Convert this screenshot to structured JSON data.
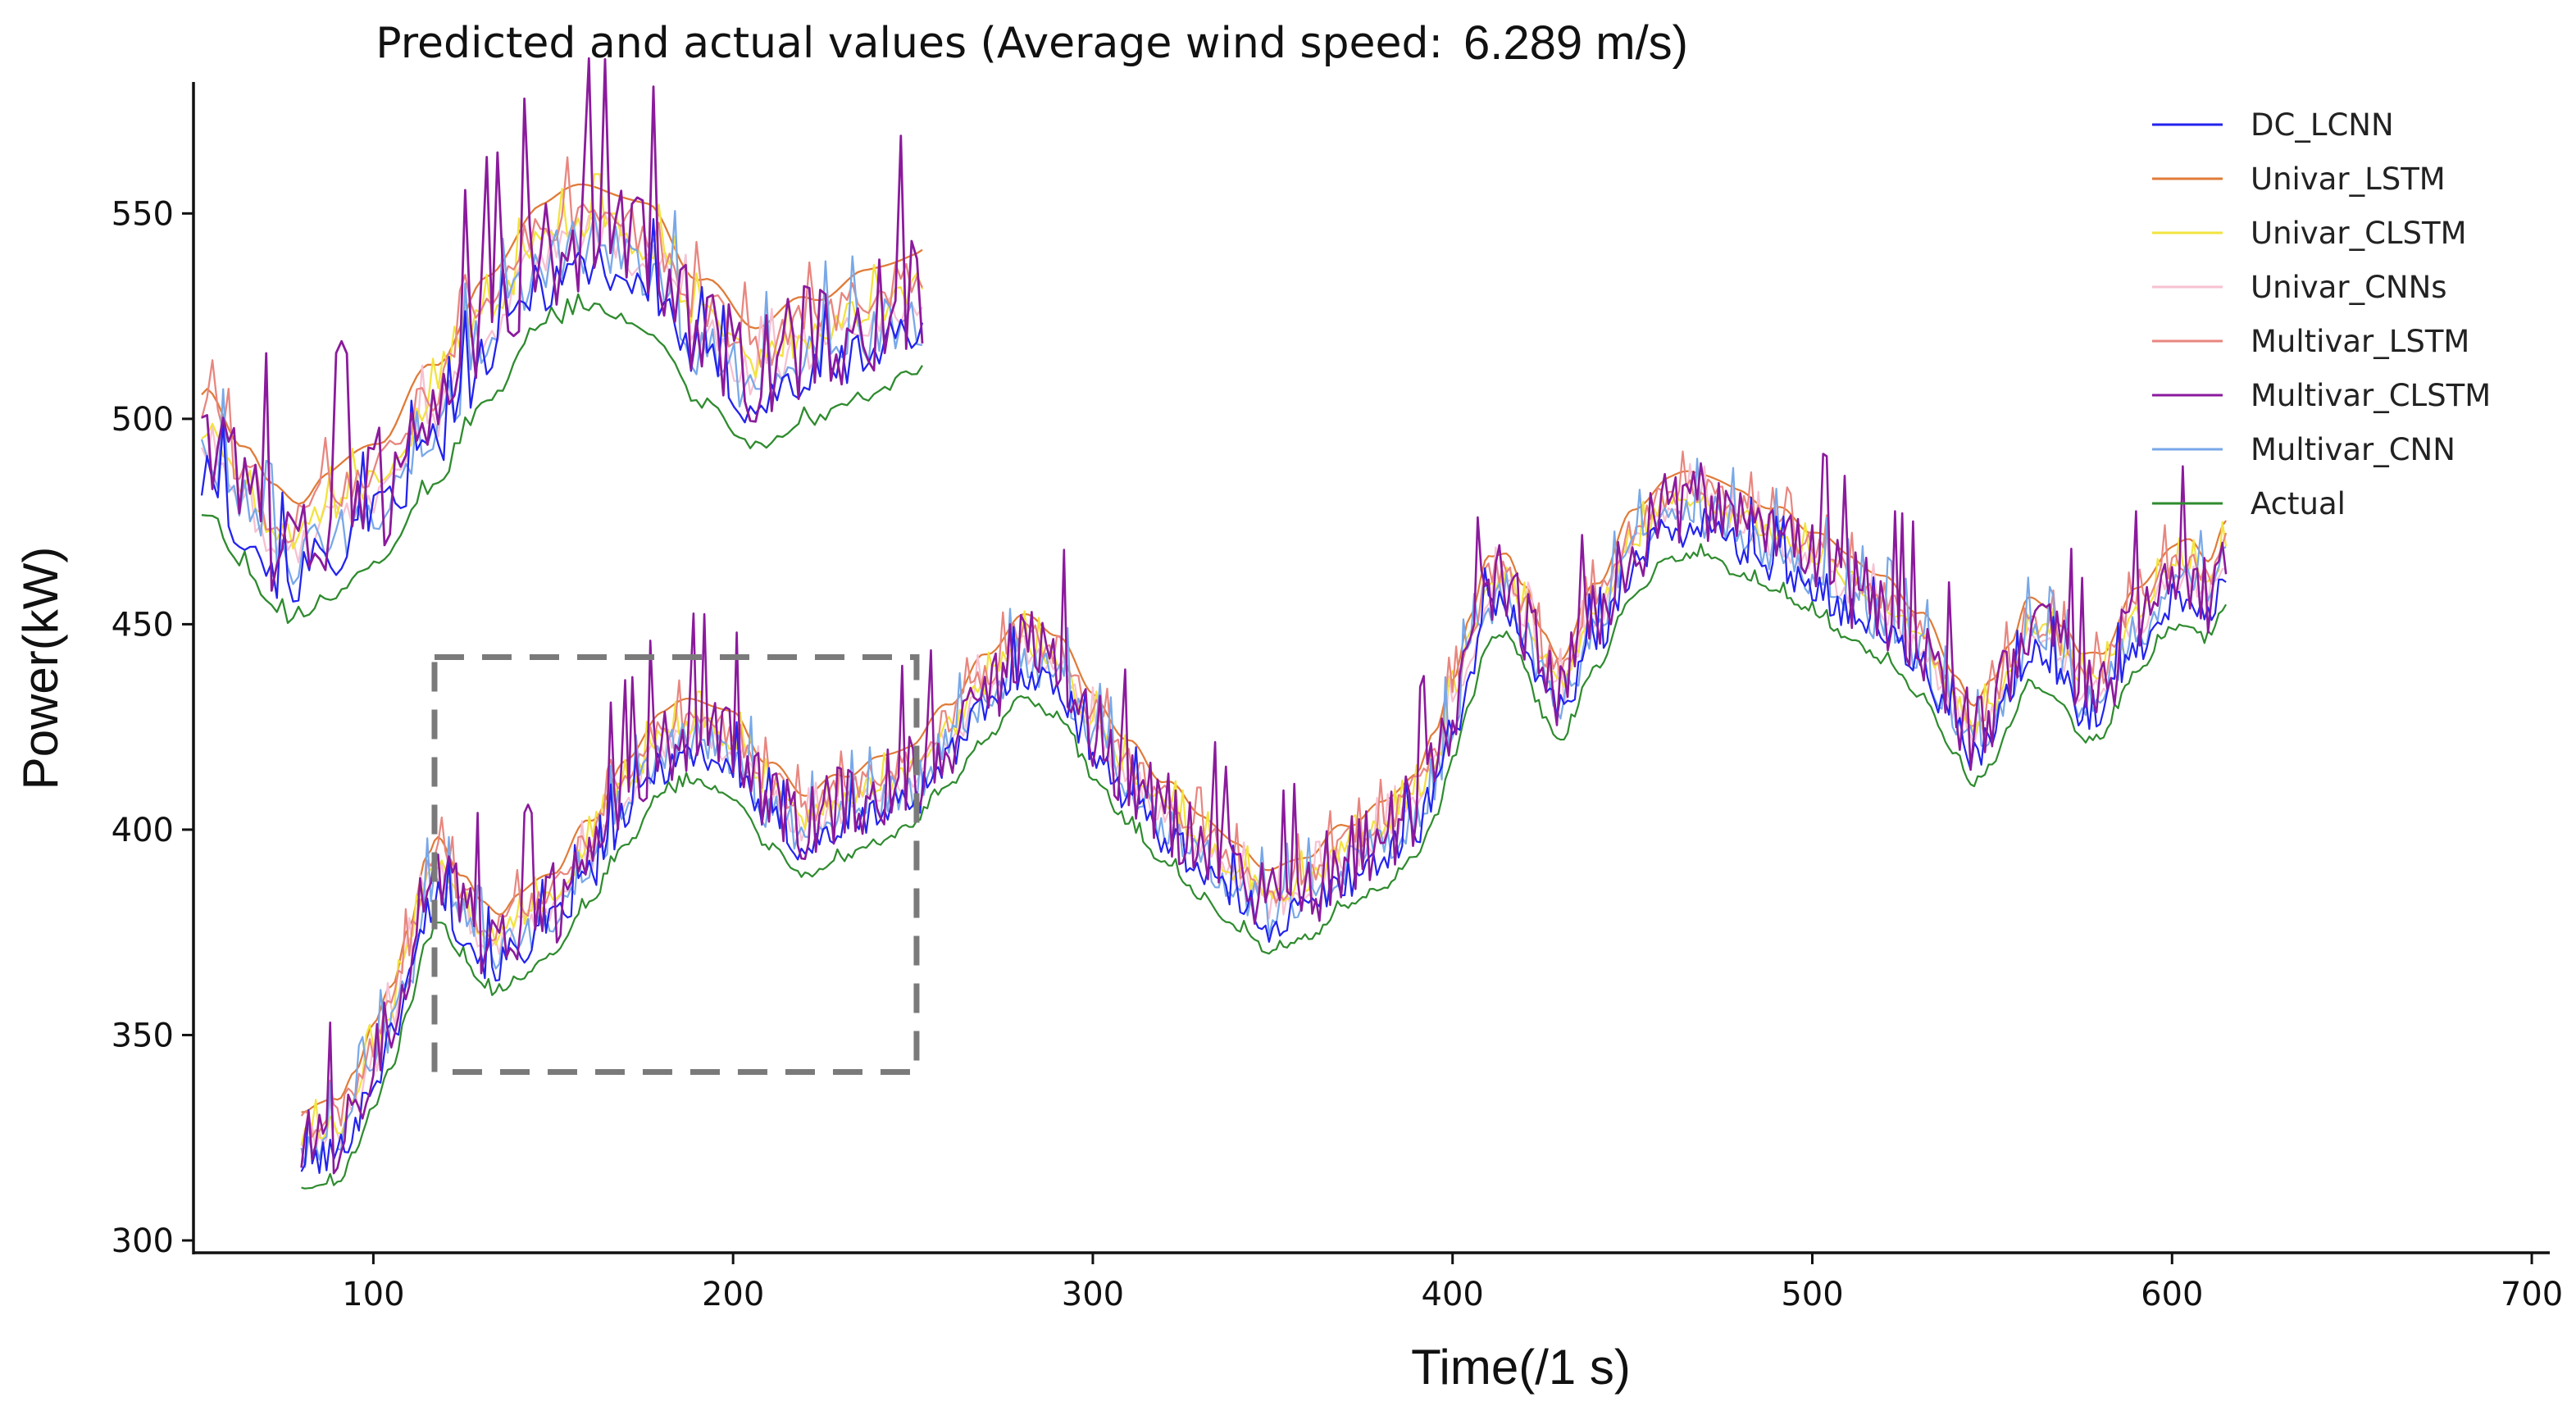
{
  "chart_data": {
    "type": "line",
    "title": "Predicted and actual values (Average wind speed:",
    "title_value": "6.289 m/s)",
    "xlabel": "Time(/1 s)",
    "ylabel": "Power(kW)",
    "xlim": [
      50,
      705
    ],
    "ylim": [
      297,
      582
    ],
    "xticks": [
      "100",
      "200",
      "300",
      "400",
      "500",
      "600",
      "700"
    ],
    "yticks": [
      "300",
      "350",
      "400",
      "450",
      "500",
      "550"
    ],
    "legend_position": "top-right",
    "highlight_box": {
      "x_range": [
        117,
        251
      ],
      "y_range": [
        341,
        442
      ]
    },
    "inset": {
      "source_x_range": [
        117,
        251
      ],
      "description": "zoomed view of boxed region"
    },
    "base_actual": {
      "x": [
        80,
        85,
        90,
        95,
        100,
        105,
        110,
        115,
        118,
        125,
        130,
        135,
        140,
        150,
        160,
        170,
        180,
        190,
        200,
        210,
        220,
        230,
        240,
        250,
        260,
        270,
        280,
        290,
        300,
        310,
        320,
        330,
        340,
        350,
        360,
        370,
        380,
        390,
        395,
        400,
        405,
        410,
        415,
        420,
        425,
        430,
        440,
        450,
        460,
        470,
        480,
        490,
        500,
        510,
        520,
        530,
        540,
        545,
        550,
        555,
        560,
        565,
        570,
        575,
        580,
        590,
        600,
        605,
        610,
        615
      ],
      "values": [
        312,
        313,
        314,
        322,
        332,
        342,
        357,
        373,
        378,
        369,
        362,
        360,
        364,
        370,
        382,
        396,
        409,
        412,
        408,
        396,
        389,
        393,
        397,
        401,
        411,
        422,
        432,
        428,
        413,
        401,
        392,
        384,
        376,
        370,
        374,
        381,
        386,
        394,
        403,
        417,
        432,
        446,
        448,
        439,
        428,
        422,
        440,
        457,
        466,
        467,
        462,
        458,
        453,
        447,
        441,
        433,
        418,
        410,
        416,
        426,
        436,
        434,
        430,
        422,
        423,
        438,
        449,
        450,
        446,
        455
      ]
    },
    "series": [
      {
        "name": "DC_LCNN",
        "color": "#2323ee",
        "offset": 7,
        "noise": 5
      },
      {
        "name": "Univar_LSTM",
        "color": "#e07b39",
        "offset": 20,
        "noise": 0
      },
      {
        "name": "Univar_CLSTM",
        "color": "#f2e340",
        "offset": 14,
        "noise": 3
      },
      {
        "name": "Univar_CNNs",
        "color": "#f7c1d2",
        "offset": 12,
        "noise": 4
      },
      {
        "name": "Multivar_LSTM",
        "color": "#e8867f",
        "offset": 16,
        "noise": 4
      },
      {
        "name": "Multivar_CLSTM",
        "color": "#8b1a9c",
        "offset": 13,
        "noise": 11
      },
      {
        "name": "Multivar_CNN",
        "color": "#78a8e8",
        "offset": 10,
        "noise": 6
      },
      {
        "name": "Actual",
        "color": "#2e8b2e",
        "offset": 0,
        "noise": 1
      }
    ],
    "colors": {
      "box": "#7a7a7a",
      "axis": "#111111"
    }
  }
}
